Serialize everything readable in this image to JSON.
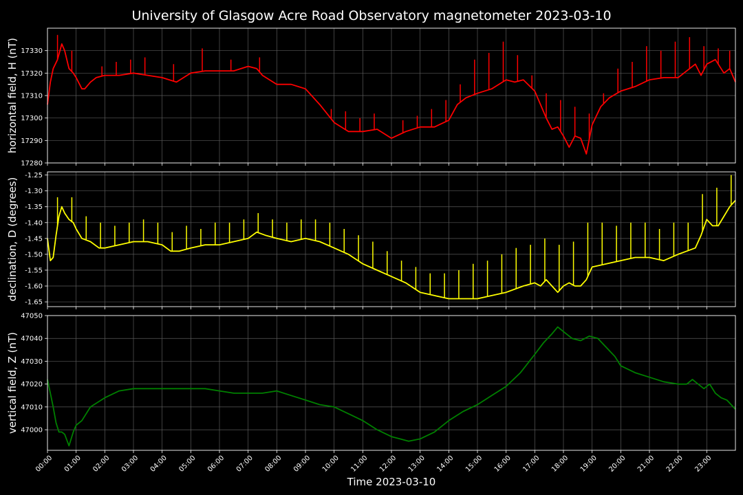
{
  "figure": {
    "title": "University of Glasgow Acre Road Observatory magnetometer 2023-03-10",
    "xlabel": "Time 2023-03-10",
    "background": "#000000",
    "foreground": "#ffffff",
    "grid_color": "#5a5a5a"
  },
  "chart_data": [
    {
      "type": "line",
      "ylabel": "horizontal field, H (nT)",
      "color": "#ff0000",
      "ylim": [
        17280,
        17340
      ],
      "yticks": [
        17280,
        17290,
        17300,
        17310,
        17320,
        17330
      ],
      "xlim": [
        0,
        24
      ],
      "grid": true,
      "x": [
        0,
        0.1,
        0.2,
        0.35,
        0.5,
        0.6,
        0.75,
        0.9,
        1.0,
        1.2,
        1.3,
        1.5,
        1.7,
        2.0,
        2.5,
        3.0,
        3.5,
        4.0,
        4.5,
        5.0,
        5.5,
        6.0,
        6.5,
        7.0,
        7.3,
        7.5,
        8.0,
        8.5,
        9.0,
        9.5,
        10.0,
        10.5,
        11.0,
        11.5,
        12.0,
        12.5,
        13.0,
        13.5,
        14.0,
        14.3,
        14.6,
        15.0,
        15.5,
        16.0,
        16.3,
        16.6,
        17.0,
        17.2,
        17.4,
        17.6,
        17.8,
        18.0,
        18.2,
        18.4,
        18.6,
        18.8,
        19.0,
        19.3,
        19.6,
        20.0,
        20.5,
        21.0,
        21.5,
        22.0,
        22.3,
        22.6,
        22.8,
        23.0,
        23.3,
        23.6,
        23.8,
        24.0
      ],
      "y": [
        17306,
        17316,
        17322,
        17326,
        17333,
        17330,
        17322,
        17320,
        17318,
        17313,
        17313,
        17316,
        17318,
        17319,
        17319,
        17320,
        17319,
        17318,
        17316,
        17320,
        17321,
        17321,
        17321,
        17323,
        17322,
        17319,
        17315,
        17315,
        17313,
        17306,
        17298,
        17294,
        17294,
        17295,
        17291,
        17294,
        17296,
        17296,
        17299,
        17306,
        17309,
        17311,
        17313,
        17317,
        17316,
        17317,
        17312,
        17306,
        17300,
        17295,
        17296,
        17292,
        17287,
        17292,
        17291,
        17284,
        17297,
        17305,
        17309,
        17312,
        17314,
        17317,
        17318,
        17318,
        17321,
        17324,
        17319,
        17324,
        17326,
        17320,
        17322,
        17316
      ],
      "spikes": [
        [
          0.35,
          17337
        ],
        [
          0.85,
          17330
        ],
        [
          1.9,
          17323
        ],
        [
          2.4,
          17325
        ],
        [
          2.9,
          17326
        ],
        [
          3.4,
          17327
        ],
        [
          4.4,
          17324
        ],
        [
          5.4,
          17331
        ],
        [
          6.4,
          17326
        ],
        [
          7.4,
          17327
        ],
        [
          9.9,
          17304
        ],
        [
          10.4,
          17303
        ],
        [
          10.9,
          17300
        ],
        [
          11.4,
          17302
        ],
        [
          12.4,
          17299
        ],
        [
          12.9,
          17301
        ],
        [
          13.4,
          17304
        ],
        [
          13.9,
          17308
        ],
        [
          14.4,
          17315
        ],
        [
          14.9,
          17326
        ],
        [
          15.4,
          17329
        ],
        [
          15.9,
          17334
        ],
        [
          16.4,
          17328
        ],
        [
          16.9,
          17319
        ],
        [
          17.4,
          17311
        ],
        [
          17.9,
          17308
        ],
        [
          18.4,
          17305
        ],
        [
          18.9,
          17302
        ],
        [
          19.4,
          17311
        ],
        [
          19.9,
          17322
        ],
        [
          20.4,
          17325
        ],
        [
          20.9,
          17332
        ],
        [
          21.4,
          17330
        ],
        [
          21.9,
          17334
        ],
        [
          22.4,
          17336
        ],
        [
          22.9,
          17332
        ],
        [
          23.4,
          17331
        ],
        [
          23.8,
          17330
        ]
      ]
    },
    {
      "type": "line",
      "ylabel": "declination, D (degrees)",
      "color": "#ffff00",
      "ylim": [
        -1.665,
        -1.24
      ],
      "yticks": [
        -1.65,
        -1.6,
        -1.55,
        -1.5,
        -1.45,
        -1.4,
        -1.35,
        -1.3,
        -1.25
      ],
      "xlim": [
        0,
        24
      ],
      "grid": true,
      "x": [
        0,
        0.1,
        0.2,
        0.3,
        0.4,
        0.5,
        0.6,
        0.75,
        0.9,
        1.0,
        1.2,
        1.5,
        1.8,
        2.0,
        2.5,
        3.0,
        3.5,
        4.0,
        4.3,
        4.6,
        5.0,
        5.5,
        6.0,
        6.5,
        7.0,
        7.3,
        7.6,
        8.0,
        8.5,
        9.0,
        9.5,
        10.0,
        10.5,
        11.0,
        11.5,
        12.0,
        12.5,
        13.0,
        13.5,
        14.0,
        14.5,
        15.0,
        15.5,
        16.0,
        16.3,
        16.6,
        17.0,
        17.2,
        17.4,
        17.6,
        17.8,
        18.0,
        18.2,
        18.4,
        18.6,
        18.8,
        19.0,
        19.5,
        20.0,
        20.5,
        21.0,
        21.5,
        22.0,
        22.3,
        22.6,
        22.8,
        23.0,
        23.2,
        23.4,
        23.6,
        23.8,
        24.0
      ],
      "y": [
        -1.45,
        -1.52,
        -1.51,
        -1.44,
        -1.38,
        -1.35,
        -1.37,
        -1.39,
        -1.4,
        -1.42,
        -1.45,
        -1.46,
        -1.48,
        -1.48,
        -1.47,
        -1.46,
        -1.46,
        -1.47,
        -1.49,
        -1.49,
        -1.48,
        -1.47,
        -1.47,
        -1.46,
        -1.45,
        -1.43,
        -1.44,
        -1.45,
        -1.46,
        -1.45,
        -1.46,
        -1.48,
        -1.5,
        -1.53,
        -1.55,
        -1.57,
        -1.59,
        -1.62,
        -1.63,
        -1.64,
        -1.64,
        -1.64,
        -1.63,
        -1.62,
        -1.61,
        -1.6,
        -1.59,
        -1.6,
        -1.58,
        -1.6,
        -1.62,
        -1.6,
        -1.59,
        -1.6,
        -1.6,
        -1.58,
        -1.54,
        -1.53,
        -1.52,
        -1.51,
        -1.51,
        -1.52,
        -1.5,
        -1.49,
        -1.48,
        -1.44,
        -1.39,
        -1.41,
        -1.41,
        -1.38,
        -1.35,
        -1.33
      ],
      "spikes": [
        [
          0.35,
          -1.32
        ],
        [
          0.85,
          -1.32
        ],
        [
          1.35,
          -1.38
        ],
        [
          1.85,
          -1.4
        ],
        [
          2.35,
          -1.41
        ],
        [
          2.85,
          -1.4
        ],
        [
          3.35,
          -1.39
        ],
        [
          3.85,
          -1.4
        ],
        [
          4.35,
          -1.43
        ],
        [
          4.85,
          -1.41
        ],
        [
          5.35,
          -1.42
        ],
        [
          5.85,
          -1.4
        ],
        [
          6.35,
          -1.4
        ],
        [
          6.85,
          -1.39
        ],
        [
          7.35,
          -1.37
        ],
        [
          7.85,
          -1.39
        ],
        [
          8.35,
          -1.4
        ],
        [
          8.85,
          -1.39
        ],
        [
          9.35,
          -1.39
        ],
        [
          9.85,
          -1.4
        ],
        [
          10.35,
          -1.42
        ],
        [
          10.85,
          -1.44
        ],
        [
          11.35,
          -1.46
        ],
        [
          11.85,
          -1.49
        ],
        [
          12.35,
          -1.52
        ],
        [
          12.85,
          -1.54
        ],
        [
          13.35,
          -1.56
        ],
        [
          13.85,
          -1.56
        ],
        [
          14.35,
          -1.55
        ],
        [
          14.85,
          -1.53
        ],
        [
          15.35,
          -1.52
        ],
        [
          15.85,
          -1.5
        ],
        [
          16.35,
          -1.48
        ],
        [
          16.85,
          -1.47
        ],
        [
          17.35,
          -1.45
        ],
        [
          17.85,
          -1.47
        ],
        [
          18.35,
          -1.46
        ],
        [
          18.85,
          -1.4
        ],
        [
          19.35,
          -1.4
        ],
        [
          19.85,
          -1.41
        ],
        [
          20.35,
          -1.4
        ],
        [
          20.85,
          -1.4
        ],
        [
          21.35,
          -1.42
        ],
        [
          21.85,
          -1.4
        ],
        [
          22.35,
          -1.4
        ],
        [
          22.85,
          -1.31
        ],
        [
          23.35,
          -1.29
        ],
        [
          23.85,
          -1.25
        ]
      ]
    },
    {
      "type": "line",
      "ylabel": "vertical field, Z (nT)",
      "color": "#008000",
      "ylim": [
        46991,
        47050
      ],
      "yticks": [
        47000,
        47010,
        47020,
        47030,
        47040,
        47050
      ],
      "xlim": [
        0,
        24
      ],
      "grid": true,
      "x": [
        0,
        0.1,
        0.2,
        0.3,
        0.4,
        0.5,
        0.6,
        0.75,
        0.9,
        1.0,
        1.2,
        1.5,
        2.0,
        2.5,
        3.0,
        3.5,
        4.0,
        4.5,
        5.0,
        5.5,
        6.0,
        6.5,
        7.0,
        7.5,
        8.0,
        8.5,
        9.0,
        9.5,
        10.0,
        10.5,
        11.0,
        11.5,
        12.0,
        12.3,
        12.6,
        13.0,
        13.5,
        14.0,
        14.5,
        15.0,
        15.5,
        16.0,
        16.5,
        17.0,
        17.3,
        17.6,
        17.8,
        18.0,
        18.3,
        18.6,
        18.9,
        19.2,
        19.5,
        19.8,
        20.0,
        20.5,
        21.0,
        21.5,
        22.0,
        22.3,
        22.5,
        22.7,
        22.9,
        23.1,
        23.3,
        23.5,
        23.7,
        24.0
      ],
      "y": [
        47022,
        47016,
        47010,
        47003,
        46999,
        46999,
        46998,
        46993,
        46999,
        47002,
        47004,
        47010,
        47014,
        47017,
        47018,
        47018,
        47018,
        47018,
        47018,
        47018,
        47017,
        47016,
        47016,
        47016,
        47017,
        47015,
        47013,
        47011,
        47010,
        47007,
        47004,
        47000,
        46997,
        46996,
        46995,
        46996,
        46999,
        47004,
        47008,
        47011,
        47015,
        47019,
        47025,
        47033,
        47038,
        47042,
        47045,
        47043,
        47040,
        47039,
        47041,
        47040,
        47036,
        47032,
        47028,
        47025,
        47023,
        47021,
        47020,
        47020,
        47022,
        47020,
        47018,
        47020,
        47016,
        47014,
        47013,
        47009
      ],
      "spikes": []
    }
  ],
  "xticks": [
    "00:00",
    "01:00",
    "02:00",
    "03:00",
    "04:00",
    "05:00",
    "06:00",
    "07:00",
    "08:00",
    "09:00",
    "10:00",
    "11:00",
    "12:00",
    "13:00",
    "14:00",
    "15:00",
    "16:00",
    "17:00",
    "18:00",
    "19:00",
    "20:00",
    "21:00",
    "22:00",
    "23:00"
  ]
}
